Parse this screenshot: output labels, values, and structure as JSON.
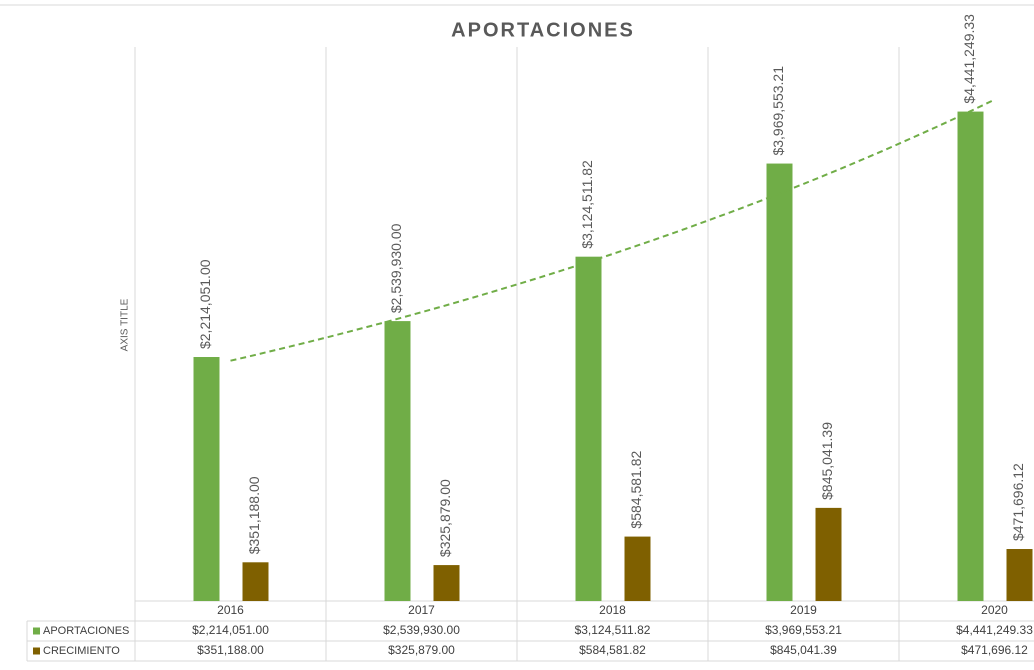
{
  "chart_data": {
    "type": "bar",
    "title": "APORTACIONES",
    "y_axis_label": "AXIS TITLE",
    "categories": [
      "2016",
      "2017",
      "2018",
      "2019",
      "2020"
    ],
    "series": [
      {
        "name": "APORTACIONES",
        "color": "#70ad47",
        "values": [
          2214051.0,
          2539930.0,
          3124511.82,
          3969553.21,
          4441249.33
        ],
        "value_labels": [
          "$2,214,051.00",
          "$2,539,930.00",
          "$3,124,511.82",
          "$3,969,553.21",
          "$4,441,249.33"
        ]
      },
      {
        "name": "CRECIMIENTO",
        "color": "#7f6000",
        "values": [
          351188.0,
          325879.0,
          584581.82,
          845041.39,
          471696.12
        ],
        "value_labels": [
          "$351,188.00",
          "$325,879.00",
          "$584,581.82",
          "$845,041.39",
          "$471,696.12"
        ]
      }
    ],
    "ylim": [
      0,
      5000000
    ],
    "trendline": "exponential",
    "data_table": true
  }
}
